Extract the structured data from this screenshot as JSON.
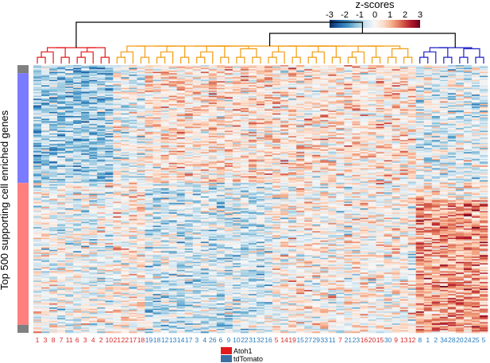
{
  "chart_data": {
    "type": "heatmap",
    "title": "",
    "ylabel": "Top 500 supporting cell enriched genes",
    "xlabel": "",
    "colorbar": {
      "title": "z-scores",
      "ticks": [
        "-3",
        "-2",
        "-1",
        "0",
        "1",
        "2",
        "3"
      ],
      "range": [
        -3,
        3
      ],
      "colors": [
        "#0b2a5b",
        "#2166ac",
        "#4393c3",
        "#92c5de",
        "#d1e5f0",
        "#f7f7f7",
        "#fddbc7",
        "#f4a582",
        "#d6604d",
        "#b2182b",
        "#67001f"
      ]
    },
    "columns": [
      {
        "label": "1",
        "group": "Atoh1"
      },
      {
        "label": "3",
        "group": "Atoh1"
      },
      {
        "label": "8",
        "group": "Atoh1"
      },
      {
        "label": "7",
        "group": "Atoh1"
      },
      {
        "label": "11",
        "group": "Atoh1"
      },
      {
        "label": "6",
        "group": "Atoh1"
      },
      {
        "label": "3",
        "group": "Atoh1"
      },
      {
        "label": "4",
        "group": "Atoh1"
      },
      {
        "label": "2",
        "group": "Atoh1"
      },
      {
        "label": "10",
        "group": "Atoh1"
      },
      {
        "label": "21",
        "group": "Atoh1"
      },
      {
        "label": "22",
        "group": "Atoh1"
      },
      {
        "label": "17",
        "group": "Atoh1"
      },
      {
        "label": "18",
        "group": "Atoh1"
      },
      {
        "label": "19",
        "group": "tdTomato"
      },
      {
        "label": "18",
        "group": "tdTomato"
      },
      {
        "label": "12",
        "group": "tdTomato"
      },
      {
        "label": "13",
        "group": "tdTomato"
      },
      {
        "label": "14",
        "group": "tdTomato"
      },
      {
        "label": "17",
        "group": "tdTomato"
      },
      {
        "label": "3",
        "group": "tdTomato"
      },
      {
        "label": "4",
        "group": "tdTomato"
      },
      {
        "label": "26",
        "group": "tdTomato"
      },
      {
        "label": "6",
        "group": "tdTomato"
      },
      {
        "label": "9",
        "group": "tdTomato"
      },
      {
        "label": "10",
        "group": "tdTomato"
      },
      {
        "label": "22",
        "group": "tdTomato"
      },
      {
        "label": "31",
        "group": "tdTomato"
      },
      {
        "label": "32",
        "group": "tdTomato"
      },
      {
        "label": "16",
        "group": "tdTomato"
      },
      {
        "label": "5",
        "group": "Atoh1"
      },
      {
        "label": "14",
        "group": "Atoh1"
      },
      {
        "label": "19",
        "group": "Atoh1"
      },
      {
        "label": "15",
        "group": "tdTomato"
      },
      {
        "label": "27",
        "group": "tdTomato"
      },
      {
        "label": "29",
        "group": "tdTomato"
      },
      {
        "label": "33",
        "group": "tdTomato"
      },
      {
        "label": "11",
        "group": "tdTomato"
      },
      {
        "label": "7",
        "group": "Atoh1"
      },
      {
        "label": "21",
        "group": "tdTomato"
      },
      {
        "label": "23",
        "group": "tdTomato"
      },
      {
        "label": "16",
        "group": "Atoh1"
      },
      {
        "label": "20",
        "group": "Atoh1"
      },
      {
        "label": "15",
        "group": "Atoh1"
      },
      {
        "label": "30",
        "group": "tdTomato"
      },
      {
        "label": "9",
        "group": "Atoh1"
      },
      {
        "label": "13",
        "group": "Atoh1"
      },
      {
        "label": "12",
        "group": "Atoh1"
      },
      {
        "label": "8",
        "group": "tdTomato"
      },
      {
        "label": "1",
        "group": "tdTomato"
      },
      {
        "label": "2",
        "group": "tdTomato"
      },
      {
        "label": "34",
        "group": "tdTomato"
      },
      {
        "label": "28",
        "group": "tdTomato"
      },
      {
        "label": "20",
        "group": "tdTomato"
      },
      {
        "label": "24",
        "group": "tdTomato"
      },
      {
        "label": "25",
        "group": "tdTomato"
      },
      {
        "label": "5",
        "group": "tdTomato"
      }
    ],
    "row_count": 500,
    "row_groups": [
      {
        "name": "gray",
        "color": "#808080",
        "rows": 15
      },
      {
        "name": "blue",
        "color": "#7b7bff",
        "rows": 205
      },
      {
        "name": "red",
        "color": "#ff7f7f",
        "rows": 265
      },
      {
        "name": "gray",
        "color": "#808080",
        "rows": 15
      }
    ],
    "dendrogram_clusters": [
      {
        "color": "#e31a1c",
        "columns": [
          0,
          9
        ]
      },
      {
        "color": "#f39c12",
        "columns": [
          10,
          47
        ]
      },
      {
        "color": "#1f1fc8",
        "columns": [
          48,
          56
        ]
      }
    ],
    "legend": {
      "position": "bottom",
      "items": [
        {
          "label": "Atoh1",
          "color": "#e31a1c"
        },
        {
          "label": "tdTomato",
          "color": "#3a6ea5"
        }
      ]
    },
    "label_colors": {
      "Atoh1": "#d62728",
      "tdTomato": "#2b7bba"
    },
    "grid": false
  }
}
